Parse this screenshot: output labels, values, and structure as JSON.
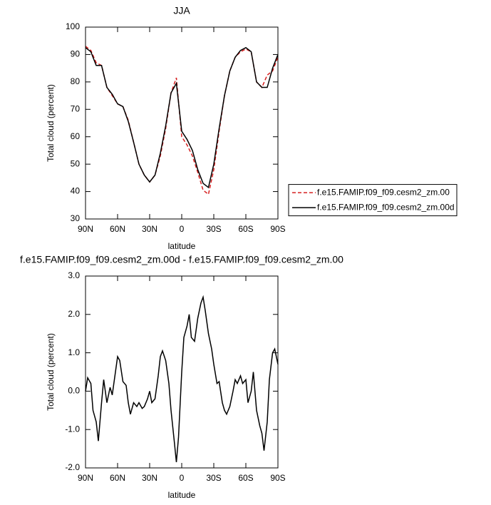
{
  "chart_data": [
    {
      "type": "line",
      "title": "JJA",
      "xlabel": "latitude",
      "ylabel": "Total cloud (percent)",
      "x": [
        90,
        85,
        80,
        75,
        70,
        65,
        60,
        55,
        50,
        45,
        40,
        35,
        30,
        25,
        20,
        15,
        10,
        5,
        0,
        -5,
        -10,
        -15,
        -20,
        -25,
        -30,
        -35,
        -40,
        -45,
        -50,
        -55,
        -60,
        -65,
        -70,
        -75,
        -80,
        -85,
        -90
      ],
      "xlim": [
        90,
        -90
      ],
      "xticks": [
        {
          "value": 90,
          "label": "90N"
        },
        {
          "value": 60,
          "label": "60N"
        },
        {
          "value": 30,
          "label": "30N"
        },
        0,
        {
          "value": -30,
          "label": "30S"
        },
        {
          "value": -60,
          "label": "60S"
        },
        {
          "value": -90,
          "label": "90S"
        }
      ],
      "ylim": [
        30,
        100
      ],
      "yticks": [
        30,
        40,
        50,
        60,
        70,
        80,
        90,
        100
      ],
      "legend": "right",
      "series": [
        {
          "name": "f.e15.FAMIP.f09_f09.cesm2_zm.00",
          "color": "#d62020",
          "style": "dashed",
          "values": [
            93,
            91.5,
            87,
            86,
            78,
            75,
            72,
            71,
            66,
            58,
            50,
            46,
            43.5,
            46,
            53,
            63,
            76,
            81.5,
            60,
            57,
            53,
            47,
            40.5,
            39,
            48,
            62,
            75,
            84,
            89,
            91,
            92,
            91,
            80,
            78,
            82.5,
            84,
            89
          ]
        },
        {
          "name": "f.e15.FAMIP.f09_f09.cesm2_zm.00d",
          "color": "#000000",
          "style": "solid",
          "values": [
            92.5,
            91,
            86,
            86,
            78,
            75.5,
            72,
            71,
            65.6,
            58,
            50,
            46,
            43.5,
            46,
            54,
            64,
            76,
            79.5,
            62,
            59,
            55,
            48,
            43,
            41.5,
            50,
            63,
            75,
            84,
            89,
            91.5,
            92.5,
            91,
            80,
            78,
            78,
            85,
            90
          ]
        }
      ]
    },
    {
      "type": "line",
      "title": "f.e15.FAMIP.f09_f09.cesm2_zm.00d - f.e15.FAMIP.f09_f09.cesm2_zm.00",
      "xlabel": "latitude",
      "ylabel": "Total cloud (percent)",
      "x": [
        90,
        88,
        85,
        83,
        80,
        78,
        75,
        73,
        70,
        67,
        65,
        62,
        60,
        58,
        55,
        52,
        50,
        48,
        45,
        42,
        40,
        37,
        35,
        32,
        30,
        28,
        25,
        22,
        20,
        18,
        15,
        12,
        10,
        7,
        5,
        3,
        0,
        -2,
        -5,
        -7,
        -9,
        -12,
        -15,
        -18,
        -20,
        -22,
        -25,
        -28,
        -30,
        -33,
        -35,
        -38,
        -40,
        -42,
        -45,
        -48,
        -50,
        -52,
        -55,
        -57,
        -60,
        -62,
        -65,
        -67,
        -70,
        -73,
        -75,
        -77,
        -80,
        -82,
        -85,
        -87,
        -90
      ],
      "xlim": [
        90,
        -90
      ],
      "xticks": [
        {
          "value": 90,
          "label": "90N"
        },
        {
          "value": 60,
          "label": "60N"
        },
        {
          "value": 30,
          "label": "30N"
        },
        0,
        {
          "value": -30,
          "label": "30S"
        },
        {
          "value": -60,
          "label": "60S"
        },
        {
          "value": -90,
          "label": "90S"
        }
      ],
      "ylim": [
        -2,
        3
      ],
      "yticks": [
        {
          "value": -2,
          "label": "-2.0"
        },
        {
          "value": -1,
          "label": "-1.0"
        },
        {
          "value": 0,
          "label": "0.0"
        },
        {
          "value": 1,
          "label": "1.0"
        },
        {
          "value": 2,
          "label": "2.0"
        },
        {
          "value": 3,
          "label": "3.0"
        }
      ],
      "series": [
        {
          "color": "#000000",
          "style": "solid",
          "values": [
            0,
            0.35,
            0.2,
            -0.5,
            -0.8,
            -1.3,
            -0.3,
            0.3,
            -0.3,
            0.1,
            -0.1,
            0.5,
            0.9,
            0.8,
            0.25,
            0.15,
            -0.3,
            -0.6,
            -0.3,
            -0.4,
            -0.3,
            -0.45,
            -0.4,
            -0.2,
            0,
            -0.3,
            -0.2,
            0.4,
            0.9,
            1.05,
            0.8,
            0.2,
            -0.5,
            -1.3,
            -1.85,
            -1.2,
            0.5,
            1.4,
            1.7,
            2.0,
            1.4,
            1.3,
            1.9,
            2.3,
            2.45,
            2.1,
            1.5,
            1.1,
            0.7,
            0.2,
            0.25,
            -0.3,
            -0.5,
            -0.6,
            -0.4,
            0,
            0.3,
            0.2,
            0.4,
            0.2,
            0.3,
            -0.3,
            0,
            0.5,
            -0.5,
            -0.9,
            -1.1,
            -1.55,
            -0.8,
            0.3,
            1.0,
            1.1,
            0.7
          ]
        }
      ]
    }
  ]
}
